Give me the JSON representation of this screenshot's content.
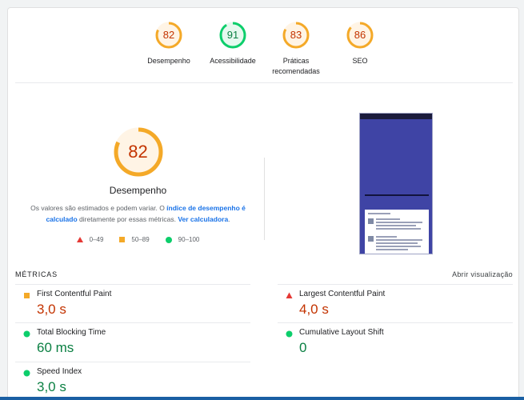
{
  "top_scores": [
    {
      "score": "82",
      "label": "Desempenho",
      "color": "#f4a928",
      "text_color": "#c33300",
      "fraction": 0.82
    },
    {
      "score": "91",
      "label": "Acessibilidade",
      "color": "#0cce6b",
      "text_color": "#0b8043",
      "fraction": 0.91
    },
    {
      "score": "83",
      "label": "Práticas recomendadas",
      "color": "#f4a928",
      "text_color": "#c33300",
      "fraction": 0.83
    },
    {
      "score": "86",
      "label": "SEO",
      "color": "#f4a928",
      "text_color": "#c33300",
      "fraction": 0.86
    }
  ],
  "performance": {
    "score": "82",
    "fraction": 0.82,
    "title": "Desempenho",
    "desc_part1": "Os valores são estimados e podem variar. O ",
    "desc_link1": "índice de desempenho é calculado",
    "desc_part2": " diretamente por essas métricas. ",
    "desc_link2": "Ver calculadora",
    "desc_part3": "."
  },
  "legend": {
    "poor": "0–49",
    "average": "50–89",
    "good": "90–100"
  },
  "metrics": {
    "header": "MÉTRICAS",
    "expand_link": "Abrir visualização",
    "items": [
      {
        "name": "First Contentful Paint",
        "value": "3,0 s",
        "status": "average"
      },
      {
        "name": "Largest Contentful Paint",
        "value": "4,0 s",
        "status": "poor"
      },
      {
        "name": "Total Blocking Time",
        "value": "60 ms",
        "status": "good"
      },
      {
        "name": "Cumulative Layout Shift",
        "value": "0",
        "status": "good"
      },
      {
        "name": "Speed Index",
        "value": "3,0 s",
        "status": "good"
      }
    ]
  },
  "colors": {
    "average": "#f4a928",
    "poor": "#e53935",
    "good": "#0cce6b",
    "link": "#1a73e8"
  }
}
